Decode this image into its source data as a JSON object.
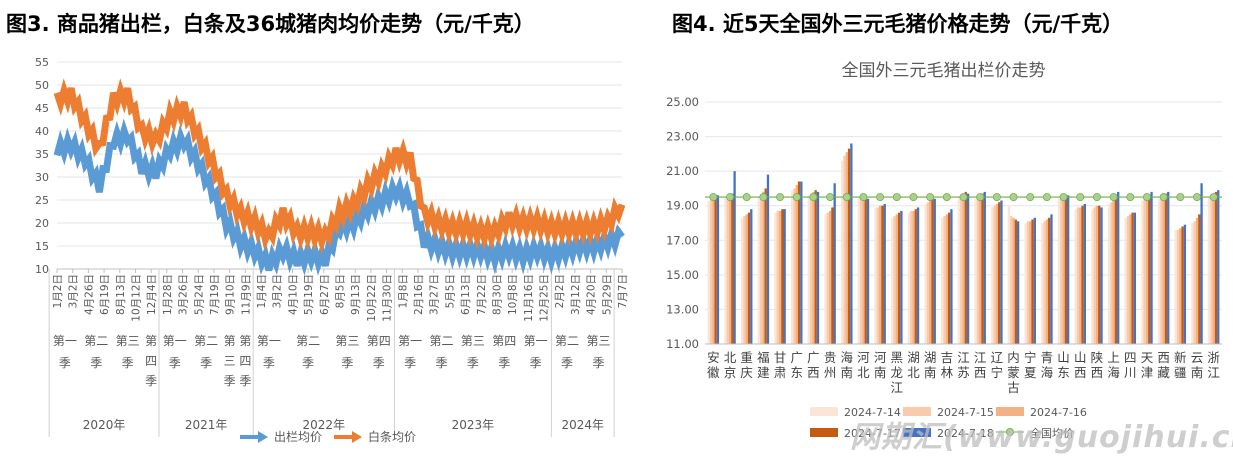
{
  "titles": {
    "left": "图3. 商品猪出栏，白条及36城猪肉均价走势（元/千克）",
    "right": "图4. 近5天全国外三元毛猪价格走势（元/千克）"
  },
  "watermark": "网期汇(www.guojihui.cn)",
  "chart_data": [
    {
      "type": "line",
      "title": "",
      "ylim": [
        10,
        55
      ],
      "yticks": [
        10,
        15,
        20,
        25,
        30,
        35,
        40,
        45,
        50,
        55
      ],
      "xticks": [
        "1月2日",
        "3月2日",
        "4月26日",
        "6月19日",
        "8月13日",
        "10月12日",
        "12月4日",
        "1月28日",
        "3月26日",
        "5月24日",
        "7月19日",
        "9月10日",
        "11月9日",
        "1月4日",
        "3月2日",
        "4月10日",
        "5月19日",
        "6月27日",
        "8月5日",
        "9月13日",
        "10月22日",
        "11月30日",
        "1月8日",
        "2月16日",
        "3月27日",
        "5月5日",
        "6月13日",
        "7月22日",
        "8月30日",
        "10月8日",
        "11月16日",
        "12月25日",
        "2月2日",
        "3月12日",
        "4月20日",
        "5月29日",
        "7月7日"
      ],
      "quarters": [
        {
          "label": "第一季"
        },
        {
          "label": "第二季"
        },
        {
          "label": "第三季"
        },
        {
          "label": "第四季"
        },
        {
          "label": "第一季"
        },
        {
          "label": "第二季"
        },
        {
          "label": "第三季"
        },
        {
          "label": "第四季"
        },
        {
          "label": "第一季"
        },
        {
          "label": "第二季"
        },
        {
          "label": "第三季"
        },
        {
          "label": "第四季"
        },
        {
          "label": "第一季"
        },
        {
          "label": "第二季"
        },
        {
          "label": "第三季"
        },
        {
          "label": "第四季"
        },
        {
          "label": "第一季"
        },
        {
          "label": "第二季"
        },
        {
          "label": "第三季"
        }
      ],
      "years": [
        "2020年",
        "2021年",
        "2022年",
        "2023年",
        "2024年"
      ],
      "year_quarter_span": [
        [
          0,
          4
        ],
        [
          4,
          8
        ],
        [
          8,
          12
        ],
        [
          12,
          16
        ],
        [
          16,
          19
        ]
      ],
      "quarter_tick_span": [
        [
          0,
          2
        ],
        [
          2,
          4
        ],
        [
          4,
          6
        ],
        [
          6,
          7
        ],
        [
          7,
          9
        ],
        [
          9,
          11
        ],
        [
          11,
          12
        ],
        [
          12,
          13
        ],
        [
          13,
          15
        ],
        [
          15,
          18
        ],
        [
          18,
          20
        ],
        [
          20,
          22
        ],
        [
          22,
          24
        ],
        [
          24,
          26
        ],
        [
          26,
          28
        ],
        [
          28,
          30
        ],
        [
          30,
          32
        ],
        [
          32,
          34
        ],
        [
          34,
          36
        ]
      ],
      "series": [
        {
          "name": "出栏均价",
          "color": "#5B9BD5",
          "values": [
            36,
            37,
            34,
            28,
            38,
            39,
            32,
            31,
            36,
            38,
            33,
            27,
            20,
            16,
            14,
            11,
            14,
            12,
            13,
            12,
            19,
            20,
            23,
            25,
            27,
            25,
            16,
            15,
            14,
            14,
            14,
            13,
            14,
            13,
            14,
            13,
            14,
            15,
            15,
            16,
            17
          ]
        },
        {
          "name": "白条均价",
          "color": "#ED7D31",
          "values": [
            47,
            48,
            42,
            36,
            47,
            48,
            40,
            38,
            43,
            45,
            39,
            33,
            26,
            22,
            20,
            17,
            22,
            18,
            18,
            17,
            22,
            24,
            28,
            31,
            35,
            34,
            22,
            20,
            19,
            19,
            18,
            18,
            21,
            20,
            20,
            19,
            19,
            19,
            19,
            20,
            24
          ]
        }
      ],
      "legend": [
        "出栏均价",
        "白条均价"
      ]
    },
    {
      "type": "bar",
      "title": "全国外三元毛猪出栏价走势",
      "ylim": [
        11.0,
        25.0
      ],
      "yticks": [
        "11.00",
        "13.00",
        "15.00",
        "17.00",
        "19.00",
        "21.00",
        "23.00",
        "25.00"
      ],
      "categories": [
        "安徽",
        "北京",
        "重庆",
        "福建",
        "甘肃",
        "广东",
        "广西",
        "贵州",
        "海南",
        "河北",
        "河南",
        "黑龙江",
        "湖北",
        "湖南",
        "吉林",
        "江苏",
        "江西",
        "辽宁",
        "内蒙古",
        "宁夏",
        "青海",
        "山东",
        "山西",
        "陕西",
        "上海",
        "四川",
        "天津",
        "西藏",
        "新疆",
        "云南",
        "浙江"
      ],
      "series": [
        {
          "name": "2024-7-14",
          "color": "#FBE5D6",
          "values": [
            19.3,
            19.5,
            18.3,
            19.5,
            18.6,
            19.9,
            19.6,
            18.5,
            21.6,
            19.5,
            18.9,
            18.3,
            18.6,
            19.1,
            18.3,
            19.5,
            19.4,
            18.9,
            19.0,
            18.0,
            18.0,
            19.4,
            18.8,
            18.8,
            19.1,
            18.3,
            19.3,
            19.4,
            17.6,
            18.0,
            19.5
          ]
        },
        {
          "name": "2024-7-15",
          "color": "#F8CBAD",
          "values": [
            19.4,
            19.5,
            18.4,
            19.6,
            18.7,
            20.0,
            19.7,
            18.6,
            21.9,
            19.6,
            18.9,
            18.4,
            18.7,
            19.2,
            18.4,
            19.6,
            19.5,
            19.0,
            18.4,
            18.1,
            18.1,
            19.5,
            18.9,
            18.9,
            19.2,
            18.4,
            19.4,
            19.5,
            17.6,
            18.1,
            19.6
          ]
        },
        {
          "name": "2024-7-16",
          "color": "#F4B183",
          "values": [
            19.4,
            19.6,
            18.5,
            19.8,
            18.7,
            20.2,
            19.8,
            18.7,
            22.1,
            19.6,
            19.0,
            18.5,
            18.7,
            19.3,
            18.5,
            19.7,
            19.6,
            19.1,
            18.3,
            18.1,
            18.2,
            19.5,
            18.9,
            19.0,
            19.3,
            18.5,
            19.4,
            19.6,
            17.7,
            18.3,
            19.7
          ]
        },
        {
          "name": "2024-7-17",
          "color": "#C55A11",
          "values": [
            19.5,
            19.7,
            18.6,
            20.0,
            18.8,
            20.4,
            19.9,
            18.9,
            22.3,
            19.5,
            19.0,
            18.6,
            18.8,
            19.4,
            18.6,
            19.8,
            19.7,
            19.2,
            18.2,
            18.2,
            18.3,
            19.6,
            19.0,
            19.0,
            19.6,
            18.6,
            19.5,
            19.7,
            17.8,
            18.5,
            19.8
          ]
        },
        {
          "name": "2024-7-18",
          "color": "#4472C4",
          "values": [
            19.6,
            21.0,
            18.8,
            20.8,
            18.8,
            20.4,
            19.8,
            20.3,
            22.6,
            19.4,
            19.1,
            18.7,
            18.9,
            19.4,
            18.8,
            19.7,
            19.8,
            19.3,
            18.1,
            18.3,
            18.5,
            19.6,
            19.1,
            18.9,
            19.8,
            18.6,
            19.8,
            19.8,
            17.9,
            20.3,
            19.9
          ]
        }
      ],
      "average": {
        "name": "全国均价",
        "color": "#70AD47",
        "value": 19.5
      },
      "legend": [
        "2024-7-14",
        "2024-7-15",
        "2024-7-16",
        "2024-7-17",
        "2024-7-18",
        "全国均价"
      ]
    }
  ]
}
